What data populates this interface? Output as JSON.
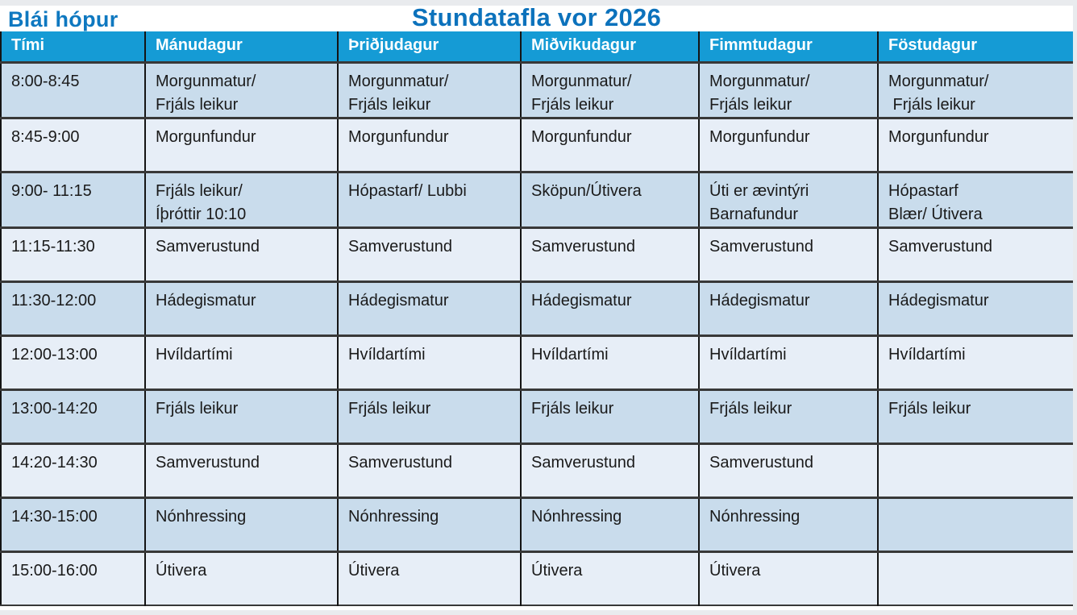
{
  "header": {
    "group_label": "Blái hópur",
    "title": "Stundatafla vor 2026"
  },
  "colors": {
    "header_bg": "#159BD5",
    "title_blue": "#0C72BC",
    "group_blue": "#0E78C0",
    "row_dark": "#C9DCEC",
    "row_light": "#E7EEF7"
  },
  "table": {
    "columns": [
      "Tími",
      "Mánudagur",
      "Þriðjudagur",
      "Miðvikudagur",
      "Fimmtudagur",
      "Föstudagur"
    ],
    "rows": [
      {
        "time": "8:00-8:45",
        "shade": "dark",
        "cells": [
          "Morgunmatur/\nFrjáls leikur",
          "Morgunmatur/\nFrjáls leikur",
          "Morgunmatur/\nFrjáls leikur",
          "Morgunmatur/\nFrjáls leikur",
          "Morgunmatur/\n Frjáls leikur"
        ]
      },
      {
        "time": "8:45-9:00",
        "shade": "light",
        "cells": [
          "Morgunfundur",
          "Morgunfundur",
          "Morgunfundur",
          "Morgunfundur",
          "Morgunfundur"
        ]
      },
      {
        "time": "9:00- 11:15",
        "shade": "dark",
        "cells": [
          "Frjáls leikur/\nÍþróttir 10:10",
          "Hópastarf/ Lubbi",
          "Sköpun/Útivera",
          "Úti er ævintýri\nBarnafundur",
          "Hópastarf\nBlær/ Útivera"
        ]
      },
      {
        "time": "11:15-11:30",
        "shade": "light",
        "cells": [
          "Samverustund",
          "Samverustund",
          "Samverustund",
          "Samverustund",
          "Samverustund"
        ]
      },
      {
        "time": "11:30-12:00",
        "shade": "dark",
        "cells": [
          "Hádegismatur",
          "Hádegismatur",
          "Hádegismatur",
          "Hádegismatur",
          "Hádegismatur"
        ]
      },
      {
        "time": "12:00-13:00",
        "shade": "light",
        "cells": [
          "Hvíldartími",
          "Hvíldartími",
          "Hvíldartími",
          "Hvíldartími",
          "Hvíldartími"
        ]
      },
      {
        "time": "13:00-14:20",
        "shade": "dark",
        "cells": [
          "Frjáls leikur",
          "Frjáls leikur",
          "Frjáls leikur",
          "Frjáls leikur",
          "Frjáls leikur"
        ]
      },
      {
        "time": "14:20-14:30",
        "shade": "light",
        "cells": [
          "Samverustund",
          "Samverustund",
          "Samverustund",
          "Samverustund",
          ""
        ]
      },
      {
        "time": "14:30-15:00",
        "shade": "dark",
        "cells": [
          "Nónhressing",
          "Nónhressing",
          "Nónhressing",
          "Nónhressing",
          ""
        ]
      },
      {
        "time": "15:00-16:00",
        "shade": "light",
        "cells": [
          "Útivera",
          "Útivera",
          "Útivera",
          "Útivera",
          ""
        ]
      }
    ]
  }
}
